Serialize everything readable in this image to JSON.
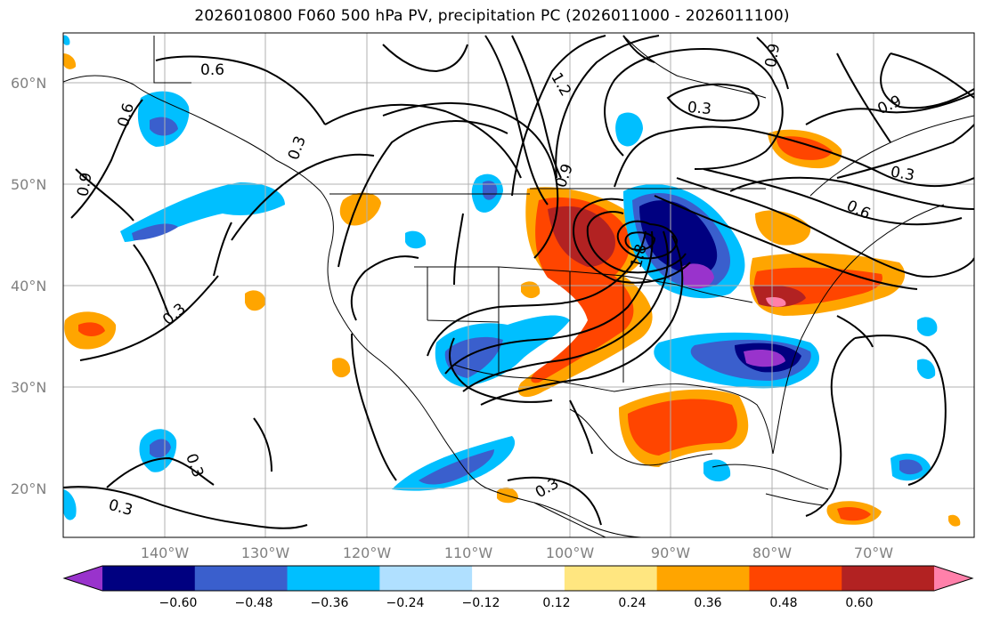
{
  "title": "2026010800 F060 500 hPa PV, precipitation PC (2026011000 - 2026011100)",
  "map": {
    "lat_labels": [
      "60°N",
      "50°N",
      "40°N",
      "30°N",
      "20°N"
    ],
    "lon_labels": [
      "140°W",
      "130°W",
      "120°W",
      "110°W",
      "100°W",
      "90°W",
      "80°W",
      "70°W"
    ],
    "contour_labels": [
      "0.6",
      "0.6",
      "0.9",
      "0.3",
      "1.2",
      "0.9",
      "0.3",
      "0.9",
      "0.6",
      "1.8",
      "0.3",
      "0.3",
      "0.3",
      "0.3",
      "0.3",
      "0.9"
    ],
    "colors": {
      "land_lines": "#000000",
      "grid": "#b0b0b0"
    }
  },
  "colorbar": {
    "tick_labels": [
      "−0.60",
      "−0.48",
      "−0.36",
      "−0.24",
      "−0.12",
      "0.12",
      "0.24",
      "0.36",
      "0.48",
      "0.60"
    ],
    "colors": [
      "#9933cc",
      "#000080",
      "#3a5fcd",
      "#00bfff",
      "#b0e0ff",
      "#ffffff",
      "#ffe680",
      "#ffa500",
      "#ff4500",
      "#b22222",
      "#ff80aa"
    ]
  }
}
